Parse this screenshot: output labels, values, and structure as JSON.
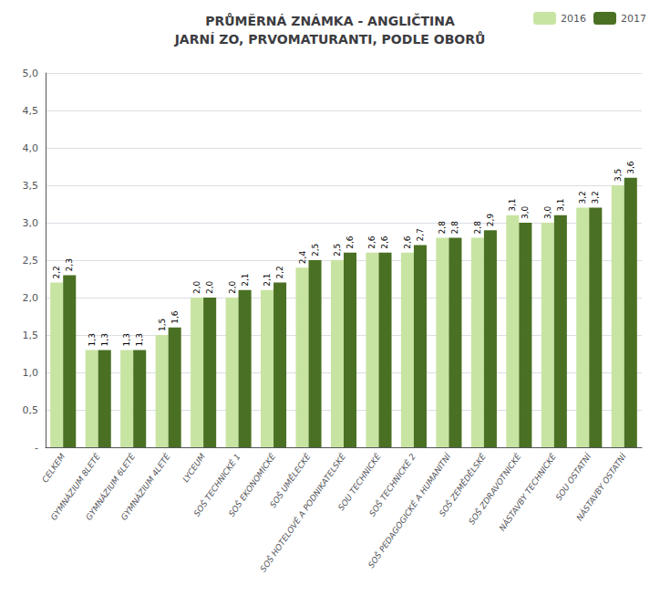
{
  "chart_data": {
    "type": "bar",
    "title": "PRŮMĚRNÁ ZNÁMKA - ANGLIČTINA\nJARNÍ ZO, PRVOMATURANTI, PODLE OBORŮ",
    "categories": [
      "CELKEM",
      "GYMNÁZIUM 8LETÉ",
      "GYMNÁZIUM 6LETÉ",
      "GYMNÁZIUM 4LETÉ",
      "LYCEUM",
      "SOŠ TECHNICKÉ 1",
      "SOŠ EKONOMICKÉ",
      "SOŠ UMĚLECKÉ",
      "SOŠ HOTELOVÉ A PODNIKATELSKÉ",
      "SOU TECHNICKÉ",
      "SOŠ TECHNICKÉ 2",
      "SOŠ PEDAGOGICKÉ A HUMANITNÍ",
      "SOŠ ZEMĚDĚLSKÉ",
      "SOŠ ZDRAVOTNICKÉ",
      "NÁSTAVBY TECHNICKÉ",
      "SOU OSTATNÍ",
      "NÁSTAVBY OSTATNÍ"
    ],
    "series": [
      {
        "name": "2016",
        "color": "#c8e4a2",
        "values": [
          2.2,
          1.3,
          1.3,
          1.5,
          2.0,
          2.0,
          2.1,
          2.4,
          2.5,
          2.6,
          2.6,
          2.8,
          2.8,
          3.1,
          3.0,
          3.2,
          3.5
        ],
        "value_labels": [
          "2,2",
          "1,3",
          "1,3",
          "1,5",
          "2,0",
          "2,0",
          "2,1",
          "2,4",
          "2,5",
          "2,6",
          "2,6",
          "2,8",
          "2,8",
          "3,1",
          "3,0",
          "3,2",
          "3,5"
        ]
      },
      {
        "name": "2017",
        "color": "#4a7023",
        "values": [
          2.3,
          1.3,
          1.3,
          1.6,
          2.0,
          2.1,
          2.2,
          2.5,
          2.6,
          2.6,
          2.7,
          2.8,
          2.9,
          3.0,
          3.1,
          3.2,
          3.6
        ],
        "value_labels": [
          "2,3",
          "1,3",
          "1,3",
          "1,6",
          "2,0",
          "2,1",
          "2,2",
          "2,5",
          "2,6",
          "2,6",
          "2,7",
          "2,8",
          "2,9",
          "3,0",
          "3,1",
          "3,2",
          "3,6"
        ]
      }
    ],
    "ylim": [
      0,
      5.0
    ],
    "yticks": [
      {
        "value": 0,
        "label": "-"
      },
      {
        "value": 0.5,
        "label": "0,5"
      },
      {
        "value": 1.0,
        "label": "1,0"
      },
      {
        "value": 1.5,
        "label": "1,5"
      },
      {
        "value": 2.0,
        "label": "2,0"
      },
      {
        "value": 2.5,
        "label": "2,5"
      },
      {
        "value": 3.0,
        "label": "3,0"
      },
      {
        "value": 3.5,
        "label": "3,5"
      },
      {
        "value": 4.0,
        "label": "4,0"
      },
      {
        "value": 4.5,
        "label": "4,5"
      },
      {
        "value": 5.0,
        "label": "5,0"
      }
    ],
    "grid": true,
    "legend": "upper right",
    "data_labels": true
  }
}
